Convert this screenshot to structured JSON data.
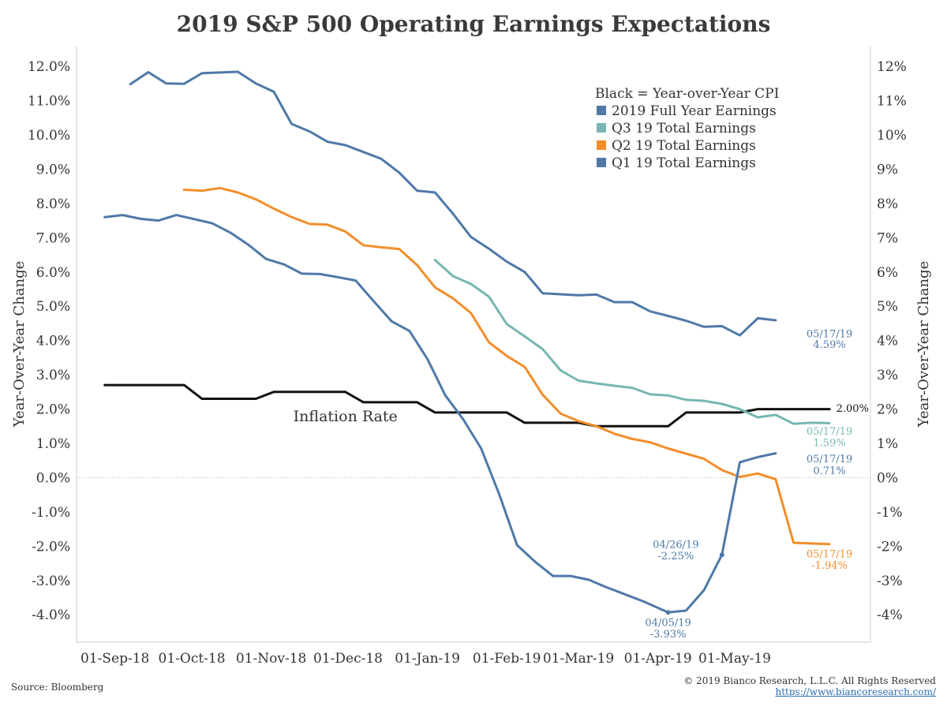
{
  "title": "2019 S&P 500 Operating Earnings Expectations",
  "footer": {
    "source": "Source: Bloomberg",
    "copyright": "© 2019 Bianco Research, L.L.C. All Rights Reserved",
    "url": "https://www.biancoresearch.com/"
  },
  "colors": {
    "fy": "#4e79a7",
    "q3": "#76b7b2",
    "q2": "#f28e2b",
    "q1": "#4e79a7",
    "cpi": "#111111"
  },
  "chart_data": {
    "type": "line",
    "title": "2019 S&P 500 Operating Earnings Expectations",
    "ylabel_left": "Year-Over-Year Change",
    "ylabel_right": "Year-Over-Year Change",
    "ylim": [
      -4.8,
      12.6
    ],
    "grid": false,
    "legend_placement": "top-right",
    "legend": {
      "header": "Black = Year-over-Year CPI",
      "entries": [
        {
          "label": "2019 Full Year Earnings",
          "series": "fy"
        },
        {
          "label": "Q3 19 Total Earnings",
          "series": "q3"
        },
        {
          "label": "Q2 19 Total Earnings",
          "series": "q2"
        },
        {
          "label": "Q1 19 Total Earnings",
          "series": "q1"
        }
      ]
    },
    "x_ticks": [
      "01-Sep-18",
      "01-Oct-18",
      "01-Nov-18",
      "01-Dec-18",
      "01-Jan-19",
      "01-Feb-19",
      "01-Mar-19",
      "01-Apr-19",
      "01-May-19"
    ],
    "y_ticks_left": [
      "12.0%",
      "11.0%",
      "10.0%",
      "9.0%",
      "8.0%",
      "7.0%",
      "6.0%",
      "5.0%",
      "4.0%",
      "3.0%",
      "2.0%",
      "1.0%",
      "0.0%",
      "-1.0%",
      "-2.0%",
      "-3.0%",
      "-4.0%"
    ],
    "y_ticks_right": [
      "12%",
      "11%",
      "10%",
      "9%",
      "8%",
      "7%",
      "6%",
      "5%",
      "4%",
      "3%",
      "2%",
      "1%",
      "0%",
      "-1%",
      "-2%",
      "-3%",
      "-4%"
    ],
    "series": {
      "fy": [
        [
          "2018-09-07",
          11.48
        ],
        [
          "2018-09-14",
          11.83
        ],
        [
          "2018-09-21",
          11.5
        ],
        [
          "2018-09-28",
          11.49
        ],
        [
          "2018-10-05",
          11.8
        ],
        [
          "2018-10-12",
          11.82
        ],
        [
          "2018-10-19",
          11.84
        ],
        [
          "2018-10-26",
          11.5
        ],
        [
          "2018-11-02",
          11.26
        ],
        [
          "2018-11-09",
          10.32
        ],
        [
          "2018-11-16",
          10.1
        ],
        [
          "2018-11-23",
          9.8
        ],
        [
          "2018-11-30",
          9.7
        ],
        [
          "2018-12-07",
          9.5
        ],
        [
          "2018-12-14",
          9.3
        ],
        [
          "2018-12-21",
          8.9
        ],
        [
          "2018-12-28",
          8.37
        ],
        [
          "2019-01-04",
          8.32
        ],
        [
          "2019-01-11",
          7.7
        ],
        [
          "2019-01-18",
          7.02
        ],
        [
          "2019-01-25",
          6.68
        ],
        [
          "2019-02-01",
          6.3
        ],
        [
          "2019-02-08",
          6.0
        ],
        [
          "2019-02-15",
          5.38
        ],
        [
          "2019-02-22",
          5.35
        ],
        [
          "2019-03-01",
          5.32
        ],
        [
          "2019-03-08",
          5.34
        ],
        [
          "2019-03-15",
          5.12
        ],
        [
          "2019-03-22",
          5.12
        ],
        [
          "2019-03-29",
          4.85
        ],
        [
          "2019-04-05",
          4.72
        ],
        [
          "2019-04-12",
          4.58
        ],
        [
          "2019-04-19",
          4.4
        ],
        [
          "2019-04-26",
          4.42
        ],
        [
          "2019-05-03",
          4.15
        ],
        [
          "2019-05-10",
          4.65
        ],
        [
          "2019-05-17",
          4.59
        ]
      ],
      "q3": [
        [
          "2019-01-04",
          6.35
        ],
        [
          "2019-01-11",
          5.88
        ],
        [
          "2019-01-18",
          5.65
        ],
        [
          "2019-01-25",
          5.28
        ],
        [
          "2019-02-01",
          4.48
        ],
        [
          "2019-02-08",
          4.12
        ],
        [
          "2019-02-15",
          3.75
        ],
        [
          "2019-02-22",
          3.13
        ],
        [
          "2019-03-01",
          2.83
        ],
        [
          "2019-03-08",
          2.75
        ],
        [
          "2019-03-15",
          2.68
        ],
        [
          "2019-03-22",
          2.62
        ],
        [
          "2019-03-29",
          2.43
        ],
        [
          "2019-04-05",
          2.4
        ],
        [
          "2019-04-12",
          2.27
        ],
        [
          "2019-04-19",
          2.24
        ],
        [
          "2019-04-26",
          2.15
        ],
        [
          "2019-05-03",
          2.0
        ],
        [
          "2019-05-10",
          1.76
        ],
        [
          "2019-05-17",
          1.83
        ],
        [
          "2019-05-24",
          1.57
        ],
        [
          "2019-05-31",
          1.6
        ],
        [
          "2019-06-07",
          1.59
        ]
      ],
      "q2": [
        [
          "2018-09-28",
          8.4
        ],
        [
          "2018-10-05",
          8.37
        ],
        [
          "2018-10-12",
          8.45
        ],
        [
          "2018-10-19",
          8.32
        ],
        [
          "2018-10-26",
          8.12
        ],
        [
          "2018-11-02",
          7.85
        ],
        [
          "2018-11-09",
          7.6
        ],
        [
          "2018-11-16",
          7.4
        ],
        [
          "2018-11-23",
          7.38
        ],
        [
          "2018-11-30",
          7.18
        ],
        [
          "2018-12-07",
          6.78
        ],
        [
          "2018-12-14",
          6.72
        ],
        [
          "2018-12-21",
          6.67
        ],
        [
          "2018-12-28",
          6.2
        ],
        [
          "2019-01-04",
          5.55
        ],
        [
          "2019-01-11",
          5.23
        ],
        [
          "2019-01-18",
          4.8
        ],
        [
          "2019-01-25",
          3.95
        ],
        [
          "2019-02-01",
          3.55
        ],
        [
          "2019-02-08",
          3.23
        ],
        [
          "2019-02-15",
          2.42
        ],
        [
          "2019-02-22",
          1.87
        ],
        [
          "2019-03-01",
          1.65
        ],
        [
          "2019-03-08",
          1.5
        ],
        [
          "2019-03-15",
          1.28
        ],
        [
          "2019-03-22",
          1.13
        ],
        [
          "2019-03-29",
          1.03
        ],
        [
          "2019-04-05",
          0.85
        ],
        [
          "2019-04-12",
          0.7
        ],
        [
          "2019-04-19",
          0.55
        ],
        [
          "2019-04-26",
          0.22
        ],
        [
          "2019-05-03",
          0.02
        ],
        [
          "2019-05-10",
          0.12
        ],
        [
          "2019-05-17",
          -0.05
        ],
        [
          "2019-05-24",
          -1.9
        ],
        [
          "2019-05-31",
          -1.92
        ],
        [
          "2019-06-07",
          -1.94
        ]
      ],
      "q1": [
        [
          "2018-08-28",
          7.6
        ],
        [
          "2018-09-04",
          7.66
        ],
        [
          "2018-09-11",
          7.55
        ],
        [
          "2018-09-18",
          7.5
        ],
        [
          "2018-09-25",
          7.66
        ],
        [
          "2018-10-02",
          7.54
        ],
        [
          "2018-10-09",
          7.42
        ],
        [
          "2018-10-16",
          7.15
        ],
        [
          "2018-10-23",
          6.8
        ],
        [
          "2018-10-30",
          6.38
        ],
        [
          "2018-11-06",
          6.22
        ],
        [
          "2018-11-13",
          5.95
        ],
        [
          "2018-11-20",
          5.94
        ],
        [
          "2018-11-27",
          5.85
        ],
        [
          "2018-12-04",
          5.75
        ],
        [
          "2018-12-11",
          5.15
        ],
        [
          "2018-12-18",
          4.56
        ],
        [
          "2018-12-25",
          4.28
        ],
        [
          "2019-01-01",
          3.46
        ],
        [
          "2019-01-08",
          2.4
        ],
        [
          "2019-01-15",
          1.7
        ],
        [
          "2019-01-22",
          0.85
        ],
        [
          "2019-01-29",
          -0.48
        ],
        [
          "2019-02-05",
          -1.97
        ],
        [
          "2019-02-12",
          -2.45
        ],
        [
          "2019-02-19",
          -2.87
        ],
        [
          "2019-02-26",
          -2.87
        ],
        [
          "2019-03-05",
          -2.98
        ],
        [
          "2019-03-12",
          -3.2
        ],
        [
          "2019-03-19",
          -3.4
        ],
        [
          "2019-03-26",
          -3.6
        ],
        [
          "2019-04-05",
          -3.93
        ],
        [
          "2019-04-12",
          -3.88
        ],
        [
          "2019-04-19",
          -3.28
        ],
        [
          "2019-04-26",
          -2.25
        ],
        [
          "2019-05-03",
          0.45
        ],
        [
          "2019-05-10",
          0.6
        ],
        [
          "2019-05-17",
          0.71
        ]
      ],
      "cpi": [
        [
          "2018-08-28",
          2.7
        ],
        [
          "2018-09-28",
          2.7
        ],
        [
          "2018-10-05",
          2.3
        ],
        [
          "2018-10-26",
          2.3
        ],
        [
          "2018-11-02",
          2.5
        ],
        [
          "2018-11-30",
          2.5
        ],
        [
          "2018-12-07",
          2.2
        ],
        [
          "2018-12-28",
          2.2
        ],
        [
          "2019-01-04",
          1.9
        ],
        [
          "2019-02-01",
          1.9
        ],
        [
          "2019-02-08",
          1.6
        ],
        [
          "2019-03-01",
          1.6
        ],
        [
          "2019-03-08",
          1.5
        ],
        [
          "2019-04-05",
          1.5
        ],
        [
          "2019-04-12",
          1.9
        ],
        [
          "2019-05-03",
          1.9
        ],
        [
          "2019-05-10",
          2.0
        ],
        [
          "2019-06-07",
          2.0
        ]
      ]
    },
    "annotations": [
      {
        "name": "inflation-rate-label",
        "text": "Inflation Rate",
        "x": "2018-11-30",
        "y": 1.65,
        "color": "#333333",
        "size": 19,
        "anchor": "middle"
      },
      {
        "name": "fy-end-date",
        "text": "05/17/19",
        "x": "2019-06-07",
        "y": 4.1,
        "color": "#4e79a7",
        "size": 13,
        "anchor": "middle"
      },
      {
        "name": "fy-end-value",
        "text": "4.59%",
        "x": "2019-06-07",
        "y": 3.78,
        "color": "#4e79a7",
        "size": 13,
        "anchor": "middle"
      },
      {
        "name": "cpi-end-value",
        "text": "2.00%",
        "x": "2019-06-16",
        "y": 1.92,
        "color": "#111111",
        "size": 13,
        "anchor": "middle"
      },
      {
        "name": "q3-end-date",
        "text": "05/17/19",
        "x": "2019-06-07",
        "y": 1.25,
        "color": "#76b7b2",
        "size": 13,
        "anchor": "middle"
      },
      {
        "name": "q3-end-value",
        "text": "1.59%",
        "x": "2019-06-07",
        "y": 0.92,
        "color": "#76b7b2",
        "size": 13,
        "anchor": "middle"
      },
      {
        "name": "q1-end-date",
        "text": "05/17/19",
        "x": "2019-06-07",
        "y": 0.45,
        "color": "#4e79a7",
        "size": 13,
        "anchor": "middle"
      },
      {
        "name": "q1-end-value",
        "text": "0.71%",
        "x": "2019-06-07",
        "y": 0.1,
        "color": "#4e79a7",
        "size": 13,
        "anchor": "middle"
      },
      {
        "name": "q2-end-date",
        "text": "05/17/19",
        "x": "2019-06-07",
        "y": -2.33,
        "color": "#f28e2b",
        "size": 13,
        "anchor": "middle"
      },
      {
        "name": "q2-end-value",
        "text": "-1.94%",
        "x": "2019-06-07",
        "y": -2.66,
        "color": "#f28e2b",
        "size": 13,
        "anchor": "middle"
      },
      {
        "name": "q1-apr26-date",
        "text": "04/26/19",
        "x": "2019-04-08",
        "y": -2.05,
        "color": "#4e79a7",
        "size": 13,
        "anchor": "middle"
      },
      {
        "name": "q1-apr26-value",
        "text": "-2.25%",
        "x": "2019-04-08",
        "y": -2.38,
        "color": "#4e79a7",
        "size": 13,
        "anchor": "middle"
      },
      {
        "name": "q1-apr05-date",
        "text": "04/05/19",
        "x": "2019-04-05",
        "y": -4.33,
        "color": "#4e79a7",
        "size": 13,
        "anchor": "middle"
      },
      {
        "name": "q1-apr05-value",
        "text": "-3.93%",
        "x": "2019-04-05",
        "y": -4.66,
        "color": "#4e79a7",
        "size": 13,
        "anchor": "middle"
      }
    ],
    "markers": [
      {
        "name": "q1-apr26-marker",
        "x": "2019-04-26",
        "y": -2.25,
        "color": "#4e79a7"
      },
      {
        "name": "q1-apr05-marker",
        "x": "2019-04-05",
        "y": -3.93,
        "color": "#4e79a7"
      }
    ]
  }
}
